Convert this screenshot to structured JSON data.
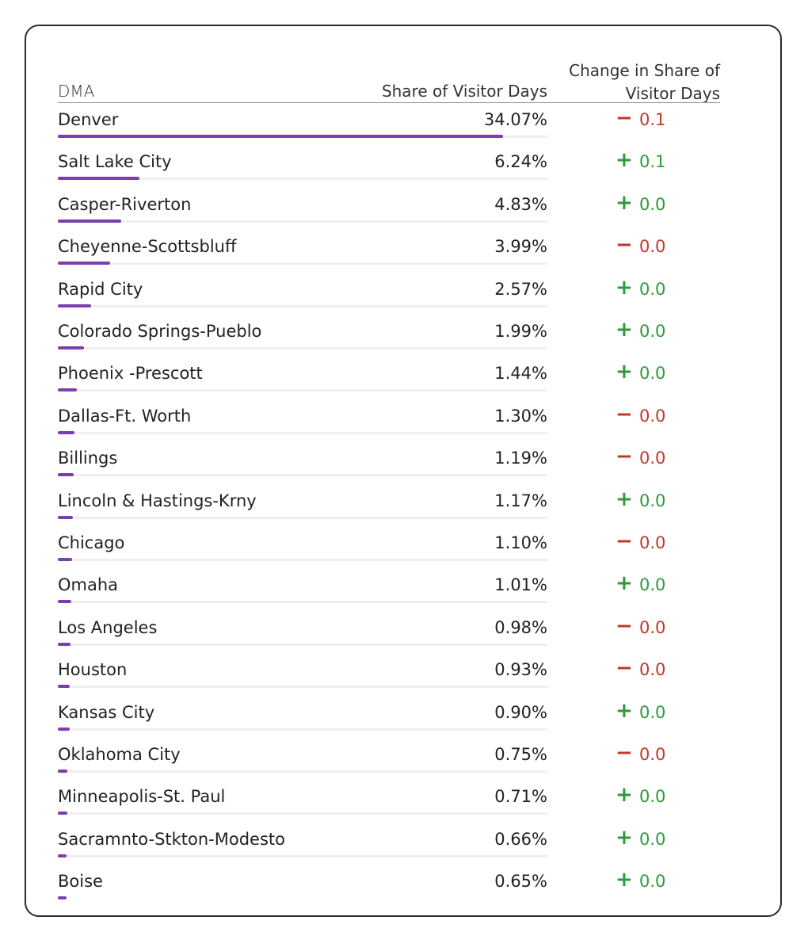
{
  "header": {
    "dma_label": "DMA",
    "share_label": "Share of Visitor Days",
    "change_label_line1": "Change in Share of",
    "change_label_line2": "Visitor Days"
  },
  "colors": {
    "bar": "#7a3fae",
    "positive": "#2e9a3a",
    "negative": "#c0392b"
  },
  "chart_data": {
    "type": "table",
    "columns": [
      "DMA",
      "Share of Visitor Days",
      "Change in Share of Visitor Days"
    ],
    "max_share": 34.07,
    "rows": [
      {
        "dma": "Denver",
        "share": 34.07,
        "share_label": "34.07%",
        "sign": "−",
        "direction": "neg",
        "change": "0.1"
      },
      {
        "dma": "Salt Lake City",
        "share": 6.24,
        "share_label": "6.24%",
        "sign": "+",
        "direction": "pos",
        "change": "0.1"
      },
      {
        "dma": "Casper-Riverton",
        "share": 4.83,
        "share_label": "4.83%",
        "sign": "+",
        "direction": "pos",
        "change": "0.0"
      },
      {
        "dma": "Cheyenne-Scottsbluff",
        "share": 3.99,
        "share_label": "3.99%",
        "sign": "−",
        "direction": "neg",
        "change": "0.0"
      },
      {
        "dma": "Rapid City",
        "share": 2.57,
        "share_label": "2.57%",
        "sign": "+",
        "direction": "pos",
        "change": "0.0"
      },
      {
        "dma": "Colorado Springs-Pueblo",
        "share": 1.99,
        "share_label": "1.99%",
        "sign": "+",
        "direction": "pos",
        "change": "0.0"
      },
      {
        "dma": "Phoenix -Prescott",
        "share": 1.44,
        "share_label": "1.44%",
        "sign": "+",
        "direction": "pos",
        "change": "0.0"
      },
      {
        "dma": "Dallas-Ft. Worth",
        "share": 1.3,
        "share_label": "1.30%",
        "sign": "−",
        "direction": "neg",
        "change": "0.0"
      },
      {
        "dma": "Billings",
        "share": 1.19,
        "share_label": "1.19%",
        "sign": "−",
        "direction": "neg",
        "change": "0.0"
      },
      {
        "dma": "Lincoln & Hastings-Krny",
        "share": 1.17,
        "share_label": "1.17%",
        "sign": "+",
        "direction": "pos",
        "change": "0.0"
      },
      {
        "dma": "Chicago",
        "share": 1.1,
        "share_label": "1.10%",
        "sign": "−",
        "direction": "neg",
        "change": "0.0"
      },
      {
        "dma": "Omaha",
        "share": 1.01,
        "share_label": "1.01%",
        "sign": "+",
        "direction": "pos",
        "change": "0.0"
      },
      {
        "dma": "Los Angeles",
        "share": 0.98,
        "share_label": "0.98%",
        "sign": "−",
        "direction": "neg",
        "change": "0.0"
      },
      {
        "dma": "Houston",
        "share": 0.93,
        "share_label": "0.93%",
        "sign": "−",
        "direction": "neg",
        "change": "0.0"
      },
      {
        "dma": "Kansas City",
        "share": 0.9,
        "share_label": "0.90%",
        "sign": "+",
        "direction": "pos",
        "change": "0.0"
      },
      {
        "dma": "Oklahoma City",
        "share": 0.75,
        "share_label": "0.75%",
        "sign": "−",
        "direction": "neg",
        "change": "0.0"
      },
      {
        "dma": "Minneapolis-St. Paul",
        "share": 0.71,
        "share_label": "0.71%",
        "sign": "+",
        "direction": "pos",
        "change": "0.0"
      },
      {
        "dma": "Sacramnto-Stkton-Modesto",
        "share": 0.66,
        "share_label": "0.66%",
        "sign": "+",
        "direction": "pos",
        "change": "0.0"
      },
      {
        "dma": "Boise",
        "share": 0.65,
        "share_label": "0.65%",
        "sign": "+",
        "direction": "pos",
        "change": "0.0"
      }
    ]
  }
}
